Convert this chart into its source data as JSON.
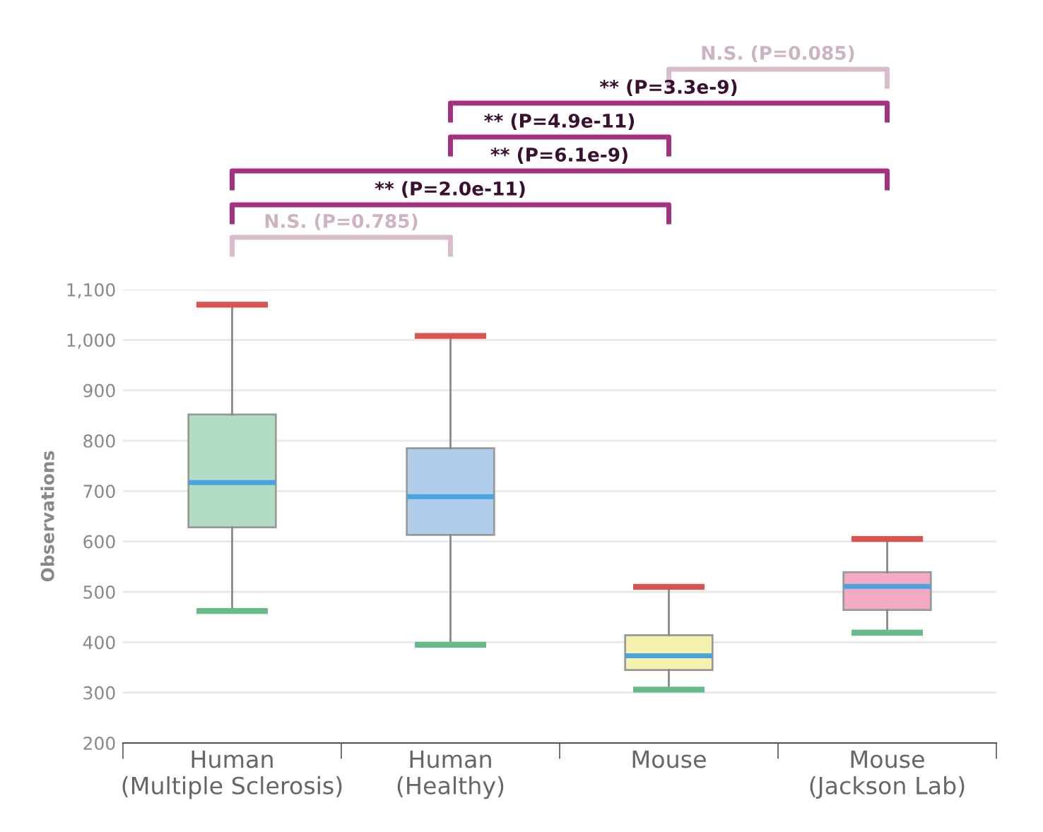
{
  "chart_data": {
    "type": "box",
    "ylabel": "Observations",
    "categories": [
      "Human\n(Multiple Sclerosis)",
      "Human\n(Healthy)",
      "Mouse",
      "Mouse\n(Jackson Lab)"
    ],
    "boxes": [
      {
        "low": 462,
        "q1": 628,
        "median": 717,
        "q3": 852,
        "high": 1070
      },
      {
        "low": 395,
        "q1": 613,
        "median": 689,
        "q3": 785,
        "high": 1008
      },
      {
        "low": 306,
        "q1": 345,
        "median": 373,
        "q3": 414,
        "high": 510
      },
      {
        "low": 419,
        "q1": 464,
        "median": 511,
        "q3": 539,
        "high": 605
      }
    ],
    "colors": [
      "#b3dcc4",
      "#b0cdec",
      "#f4f2ae",
      "#f4a9c4"
    ],
    "ylim": [
      200,
      1100
    ],
    "yticks": [
      200,
      300,
      400,
      500,
      600,
      700,
      800,
      900,
      {
        "value": 1000,
        "label": "1,000"
      },
      {
        "value": 1100,
        "label": "1,100"
      }
    ],
    "grid": "y",
    "annotations": [
      "N.S. (P=0.085)",
      "** (P=3.3e-9)",
      "** (P=4.9e-11)",
      "** (P=6.1e-9)",
      "** (P=2.0e-11)",
      "N.S. (P=0.785)"
    ]
  }
}
